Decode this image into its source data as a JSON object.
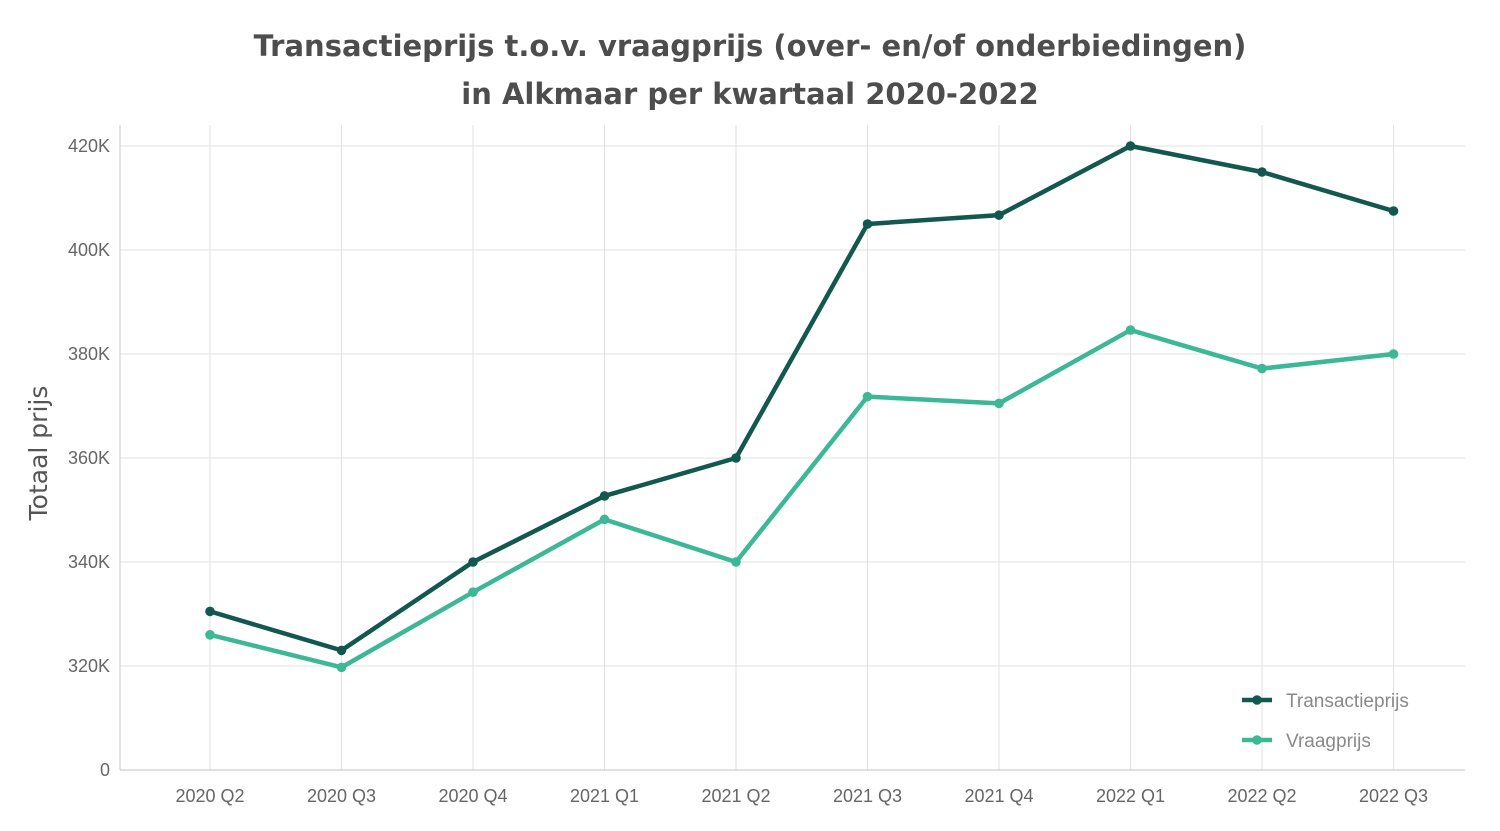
{
  "chart_data": {
    "type": "line",
    "title_lines": [
      "Transactieprijs t.o.v. vraagprijs (over- en/of onderbiedingen)",
      "in Alkmaar per kwartaal 2020-2022"
    ],
    "ylabel": "Totaal prijs",
    "xlabel": "",
    "categories": [
      "2020 Q2",
      "2020 Q3",
      "2020 Q4",
      "2021 Q1",
      "2021 Q2",
      "2021 Q3",
      "2021 Q4",
      "2022 Q1",
      "2022 Q2",
      "2022 Q3"
    ],
    "y_ticks": [
      {
        "value": 0,
        "label": "0"
      },
      {
        "value": 320000,
        "label": "320K"
      },
      {
        "value": 340000,
        "label": "340K"
      },
      {
        "value": 360000,
        "label": "360K"
      },
      {
        "value": 380000,
        "label": "380K"
      },
      {
        "value": 400000,
        "label": "400K"
      },
      {
        "value": 420000,
        "label": "420K"
      }
    ],
    "axis_break": "between 0 and 320K",
    "ylim": [
      0,
      420000
    ],
    "grid": true,
    "legend_position": "bottom-right",
    "series": [
      {
        "name": "Transactieprijs",
        "color": "#12584f",
        "values": [
          330500,
          323000,
          340000,
          352700,
          360000,
          405000,
          406700,
          420000,
          415000,
          407500
        ]
      },
      {
        "name": "Vraagprijs",
        "color": "#3cb897",
        "values": [
          326000,
          315800,
          334200,
          348200,
          340000,
          371800,
          370500,
          384600,
          377200,
          380000
        ]
      }
    ]
  }
}
